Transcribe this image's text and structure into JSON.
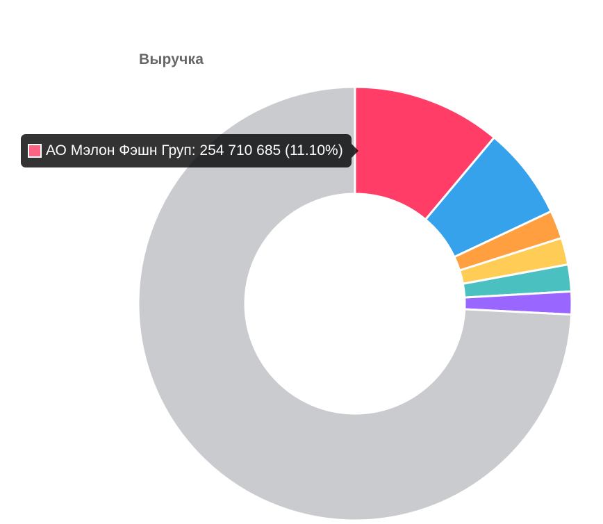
{
  "chart_data": {
    "type": "pie",
    "variant": "doughnut",
    "title": "Выручка",
    "slices": [
      {
        "label": "АО Мэлон Фэшн Груп",
        "value": 254710685,
        "percent": 11.1,
        "color": "#ff3d67"
      },
      {
        "value": 6.9,
        "color": "#36a2eb"
      },
      {
        "value": 2.1,
        "color": "#ff9f40"
      },
      {
        "value": 2.0,
        "color": "#ffcd56"
      },
      {
        "value": 2.0,
        "color": "#4bc0c0"
      },
      {
        "value": 1.7,
        "color": "#9966ff"
      },
      {
        "value": 74.2,
        "color": "#c9cbcf"
      }
    ],
    "legend": "none"
  },
  "tooltip": {
    "text": "АО Мэлон Фэшн Груп: 254 710 685 (11.10%)",
    "swatch_color": "#ff6384"
  }
}
